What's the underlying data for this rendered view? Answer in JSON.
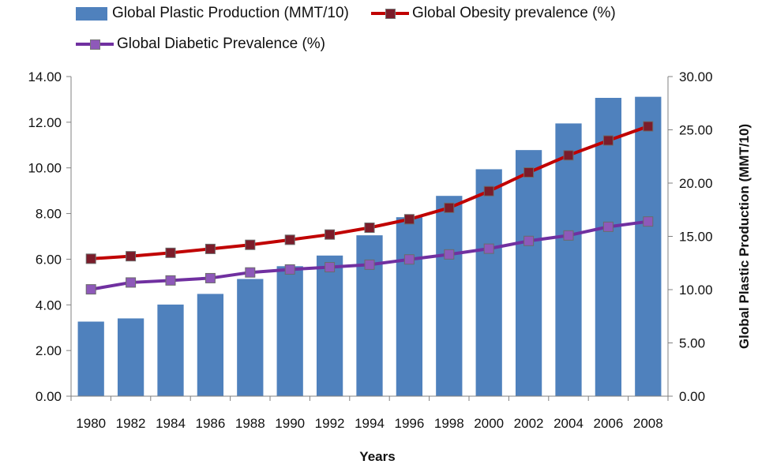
{
  "chart_data": {
    "type": "bar+line",
    "categories": [
      "1980",
      "1982",
      "1984",
      "1986",
      "1988",
      "1990",
      "1992",
      "1994",
      "1996",
      "1998",
      "2000",
      "2002",
      "2004",
      "2006",
      "2008"
    ],
    "series": [
      {
        "name": "Global Plastic Production (MMT/10)",
        "type": "bar",
        "axis": "right",
        "color": "#4F81BD",
        "values": [
          7.0,
          7.3,
          8.6,
          9.6,
          11.0,
          12.2,
          13.2,
          15.1,
          16.8,
          18.8,
          21.3,
          23.1,
          25.6,
          28.0,
          28.1
        ]
      },
      {
        "name": "Global Obesity prevalence (%)",
        "type": "line",
        "axis": "left",
        "color": "#C00000",
        "marker_color": "#7B1C2A",
        "values": [
          6.02,
          6.13,
          6.28,
          6.45,
          6.63,
          6.85,
          7.08,
          7.38,
          7.75,
          8.25,
          8.98,
          9.8,
          10.55,
          11.2,
          11.82
        ]
      },
      {
        "name": "Global Diabetic Prevalence (%)",
        "type": "line",
        "axis": "left",
        "color": "#7030A0",
        "marker_color": "#8E59B9",
        "values": [
          4.68,
          4.98,
          5.07,
          5.17,
          5.42,
          5.55,
          5.65,
          5.76,
          5.99,
          6.21,
          6.46,
          6.8,
          7.04,
          7.42,
          7.65
        ]
      }
    ],
    "y_left": {
      "min": 0,
      "max": 14,
      "step": 2,
      "ticks": [
        "0.00",
        "2.00",
        "4.00",
        "6.00",
        "8.00",
        "10.00",
        "12.00",
        "14.00"
      ],
      "label": ""
    },
    "y_right": {
      "min": 0,
      "max": 30,
      "step": 5,
      "ticks": [
        "0.00",
        "5.00",
        "10.00",
        "15.00",
        "20.00",
        "25.00",
        "30.00"
      ],
      "label": "Global Plastic Production (MMT/10)"
    },
    "xlabel": "Years",
    "grid": false,
    "legend_position": "top"
  }
}
